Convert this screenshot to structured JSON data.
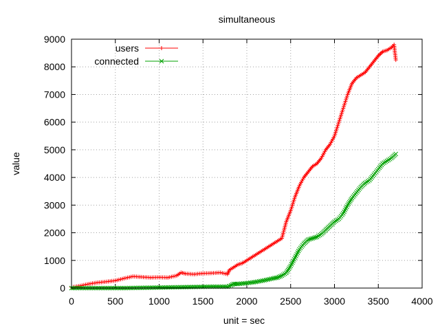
{
  "chart_data": {
    "type": "line",
    "title": "simultaneous",
    "xlabel": "unit = sec",
    "ylabel": "value",
    "xlim": [
      0,
      4000
    ],
    "ylim": [
      0,
      9000
    ],
    "xticks": [
      0,
      500,
      1000,
      1500,
      2000,
      2500,
      3000,
      3500,
      4000
    ],
    "yticks": [
      0,
      1000,
      2000,
      3000,
      4000,
      5000,
      6000,
      7000,
      8000,
      9000
    ],
    "grid": true,
    "legend_position": "top-left",
    "series": [
      {
        "name": "users",
        "color": "#ff0000",
        "marker": "plus",
        "x": [
          0,
          100,
          200,
          300,
          400,
          500,
          600,
          700,
          800,
          900,
          1000,
          1100,
          1200,
          1250,
          1300,
          1400,
          1500,
          1600,
          1700,
          1780,
          1800,
          1850,
          1900,
          1950,
          2000,
          2050,
          2100,
          2150,
          2200,
          2250,
          2300,
          2350,
          2400,
          2450,
          2500,
          2550,
          2600,
          2650,
          2700,
          2750,
          2800,
          2850,
          2900,
          2950,
          3000,
          3050,
          3100,
          3150,
          3200,
          3250,
          3300,
          3350,
          3400,
          3450,
          3500,
          3550,
          3600,
          3650,
          3680,
          3690,
          3700
        ],
        "y": [
          30,
          80,
          150,
          200,
          230,
          270,
          350,
          420,
          400,
          380,
          390,
          380,
          450,
          560,
          520,
          500,
          530,
          540,
          560,
          500,
          650,
          750,
          850,
          900,
          1000,
          1100,
          1200,
          1300,
          1400,
          1500,
          1600,
          1700,
          1800,
          2400,
          2800,
          3300,
          3700,
          4000,
          4200,
          4400,
          4500,
          4700,
          5000,
          5200,
          5500,
          6000,
          6500,
          7000,
          7400,
          7600,
          7700,
          7800,
          8000,
          8200,
          8400,
          8550,
          8600,
          8700,
          8800,
          8500,
          8250
        ]
      },
      {
        "name": "connected",
        "color": "#00a000",
        "marker": "cross",
        "x": [
          0,
          200,
          400,
          600,
          800,
          1000,
          1200,
          1400,
          1600,
          1780,
          1820,
          1850,
          1900,
          2000,
          2100,
          2200,
          2300,
          2350,
          2400,
          2450,
          2500,
          2550,
          2600,
          2650,
          2700,
          2750,
          2800,
          2850,
          2900,
          2950,
          3000,
          3050,
          3100,
          3150,
          3200,
          3250,
          3300,
          3350,
          3400,
          3450,
          3500,
          3550,
          3600,
          3650,
          3700
        ],
        "y": [
          0,
          0,
          0,
          0,
          10,
          20,
          30,
          40,
          50,
          50,
          100,
          150,
          150,
          180,
          220,
          280,
          350,
          380,
          450,
          550,
          800,
          1100,
          1400,
          1600,
          1750,
          1800,
          1850,
          1950,
          2100,
          2250,
          2400,
          2500,
          2700,
          3000,
          3250,
          3450,
          3650,
          3800,
          3900,
          4100,
          4300,
          4500,
          4600,
          4700,
          4850
        ]
      }
    ]
  }
}
